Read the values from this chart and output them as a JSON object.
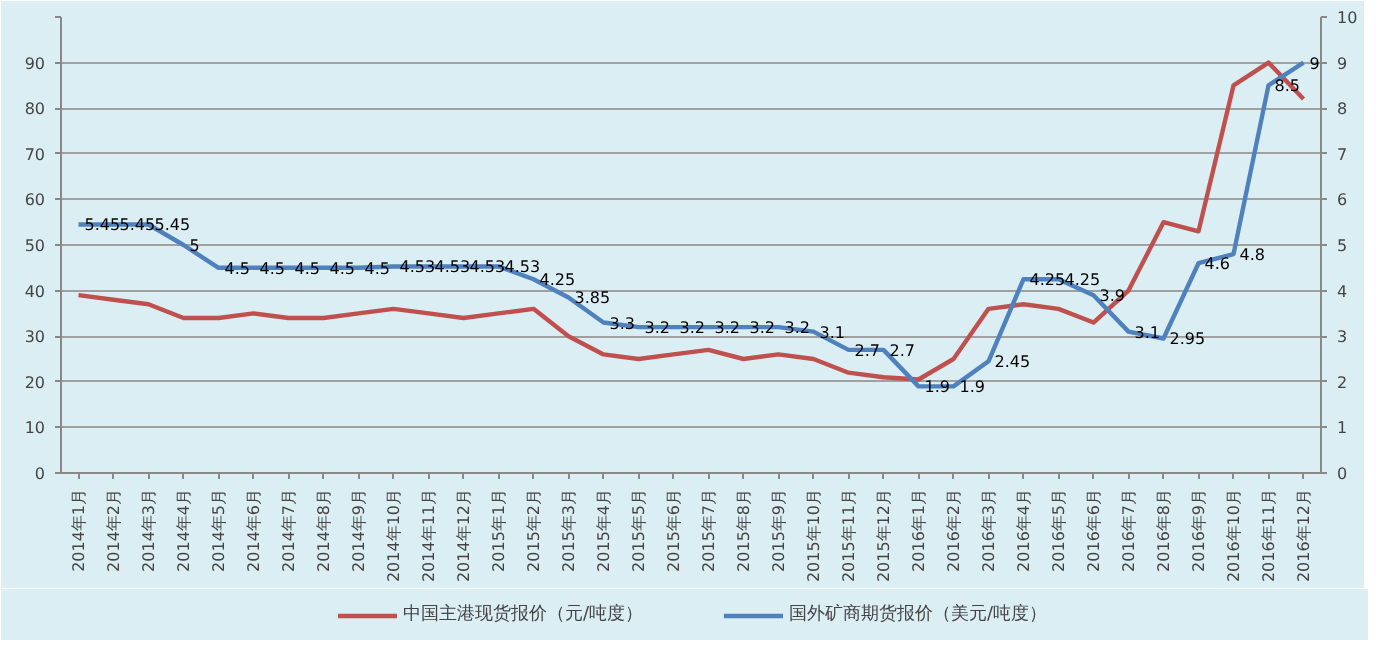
{
  "chart_data": {
    "type": "line",
    "categories": [
      "2014年1月",
      "2014年2月",
      "2014年3月",
      "2014年4月",
      "2014年5月",
      "2014年6月",
      "2014年7月",
      "2014年8月",
      "2014年9月",
      "2014年10月",
      "2014年11月",
      "2014年12月",
      "2015年1月",
      "2015年2月",
      "2015年3月",
      "2015年4月",
      "2015年5月",
      "2015年6月",
      "2015年7月",
      "2015年8月",
      "2015年9月",
      "2015年10月",
      "2015年11月",
      "2015年12月",
      "2016年1月",
      "2016年2月",
      "2016年3月",
      "2016年4月",
      "2016年5月",
      "2016年6月",
      "2016年7月",
      "2016年8月",
      "2016年9月",
      "2016年10月",
      "2016年11月",
      "2016年12月"
    ],
    "series": [
      {
        "name": "中国主港现货报价（元/吨度）",
        "color": "#c0504d",
        "values": [
          39,
          38,
          37,
          34,
          34,
          35,
          34,
          34,
          35,
          36,
          35,
          34,
          35,
          36,
          30,
          26,
          25,
          26,
          27,
          25,
          26,
          25,
          22,
          21,
          20.5,
          25,
          36,
          37,
          36,
          33,
          40,
          55,
          53,
          85,
          90,
          82
        ]
      },
      {
        "name": "国外矿商期货报价（美元/吨度）",
        "color": "#4f81bd",
        "axis": "y2",
        "values": [
          5.45,
          5.45,
          5.45,
          5,
          4.5,
          4.5,
          4.5,
          4.5,
          4.5,
          4.53,
          4.53,
          4.53,
          4.53,
          4.25,
          3.85,
          3.3,
          3.2,
          3.2,
          3.2,
          3.2,
          3.2,
          3.1,
          2.7,
          2.7,
          1.9,
          1.9,
          2.45,
          4.25,
          4.25,
          3.9,
          3.1,
          2.95,
          4.6,
          4.8,
          8.5,
          9
        ],
        "value_labels": [
          "5.45",
          "5.45",
          "5.45",
          "5",
          "4.5",
          "4.5",
          "4.5",
          "4.5",
          "4.5",
          "4.53",
          "4.53",
          "4.53",
          "4.53",
          "4.25",
          "3.85",
          "3.3",
          "3.2",
          "3.2",
          "3.2",
          "3.2",
          "3.2",
          "3.1",
          "2.7",
          "2.7",
          "1.9",
          "1.9",
          "2.45",
          "4.25",
          "4.25",
          "3.9",
          "3.1",
          "2.95",
          "4.6",
          "4.8",
          "8.5",
          "9"
        ]
      }
    ],
    "ylim": [
      0,
      100
    ],
    "yticks": [
      0,
      10,
      20,
      30,
      40,
      50,
      60,
      70,
      80,
      90,
      {
        "value": 100,
        "label": null
      }
    ],
    "y2lim": [
      0,
      10
    ],
    "y2ticks": [
      0,
      1,
      2,
      3,
      4,
      5,
      6,
      7,
      8,
      9,
      10
    ],
    "grid": "y",
    "legend": "bottom",
    "marker": "none",
    "line_style": "solid"
  }
}
